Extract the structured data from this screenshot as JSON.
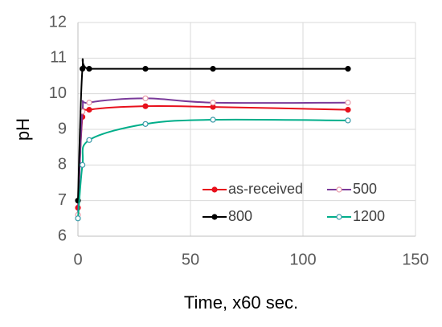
{
  "chart_data": {
    "type": "line",
    "x_label": "Time, x60 sec.",
    "y_label": "pH",
    "xlim": [
      0,
      150
    ],
    "xticks": [
      0,
      50,
      100,
      150
    ],
    "ylim": [
      6,
      12
    ],
    "yticks": [
      6,
      7,
      8,
      9,
      10,
      11,
      12
    ],
    "grid": true,
    "smooth": true,
    "legend": "lower right",
    "series": [
      {
        "name": "as-received",
        "color": "#e8101c",
        "marker": "filled",
        "x": [
          0,
          2,
          5,
          30,
          60,
          120
        ],
        "values": [
          6.8,
          9.35,
          9.55,
          9.65,
          9.63,
          9.55
        ]
      },
      {
        "name": "500",
        "color": "#7a3a9a",
        "marker_color": "#e89aa8",
        "marker": "hollow",
        "x": [
          0,
          2,
          5,
          30,
          60,
          120
        ],
        "values": [
          6.6,
          9.5,
          9.75,
          9.87,
          9.75,
          9.75
        ]
      },
      {
        "name": "800",
        "color": "#000000",
        "marker": "filled",
        "x": [
          0,
          2,
          5,
          30,
          60,
          120
        ],
        "values": [
          7.0,
          10.7,
          10.7,
          10.7,
          10.7,
          10.7
        ]
      },
      {
        "name": "1200",
        "color": "#00ae8a",
        "marker_color": "#3a9aa8",
        "marker": "hollow",
        "x": [
          0,
          2,
          5,
          30,
          60,
          120
        ],
        "values": [
          6.5,
          8.0,
          8.7,
          9.15,
          9.27,
          9.25
        ]
      }
    ]
  }
}
